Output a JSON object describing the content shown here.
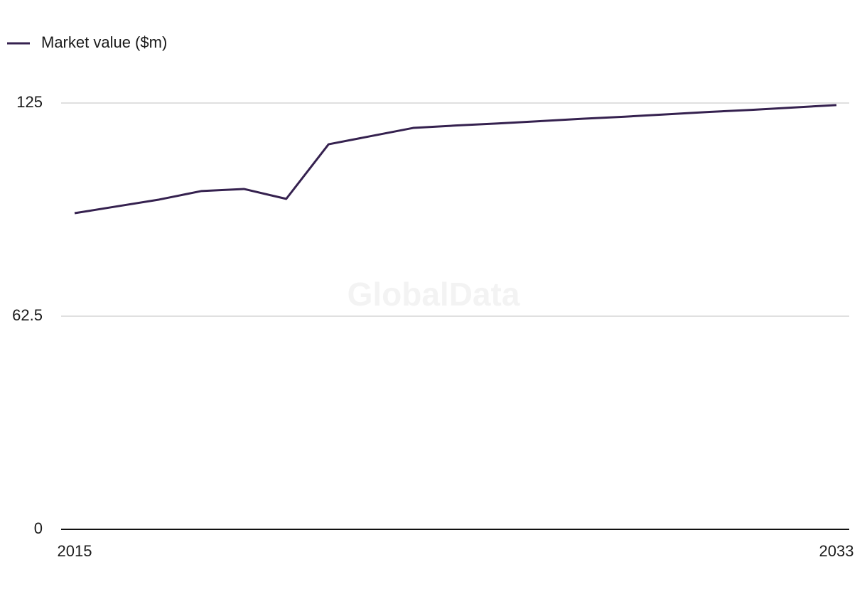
{
  "chart_data": {
    "type": "line",
    "x": [
      2015,
      2016,
      2017,
      2018,
      2019,
      2020,
      2021,
      2022,
      2023,
      2024,
      2025,
      2026,
      2027,
      2028,
      2029,
      2030,
      2031,
      2032,
      2033
    ],
    "series": [
      {
        "name": "Market value ($m)",
        "color": "#35214f",
        "values": [
          92.7,
          94.7,
          96.7,
          99.2,
          99.8,
          96.9,
          112.9,
          115.3,
          117.7,
          118.4,
          119.0,
          119.7,
          120.4,
          121.0,
          121.7,
          122.4,
          123.0,
          123.7,
          124.4
        ]
      }
    ],
    "xlim": [
      2015,
      2033
    ],
    "xticks": [
      2015,
      2033
    ],
    "ylim": [
      0,
      125
    ],
    "yticks": [
      0,
      62.5,
      125
    ],
    "grid": true,
    "legend": "top-left",
    "watermark": "GlobalData"
  }
}
